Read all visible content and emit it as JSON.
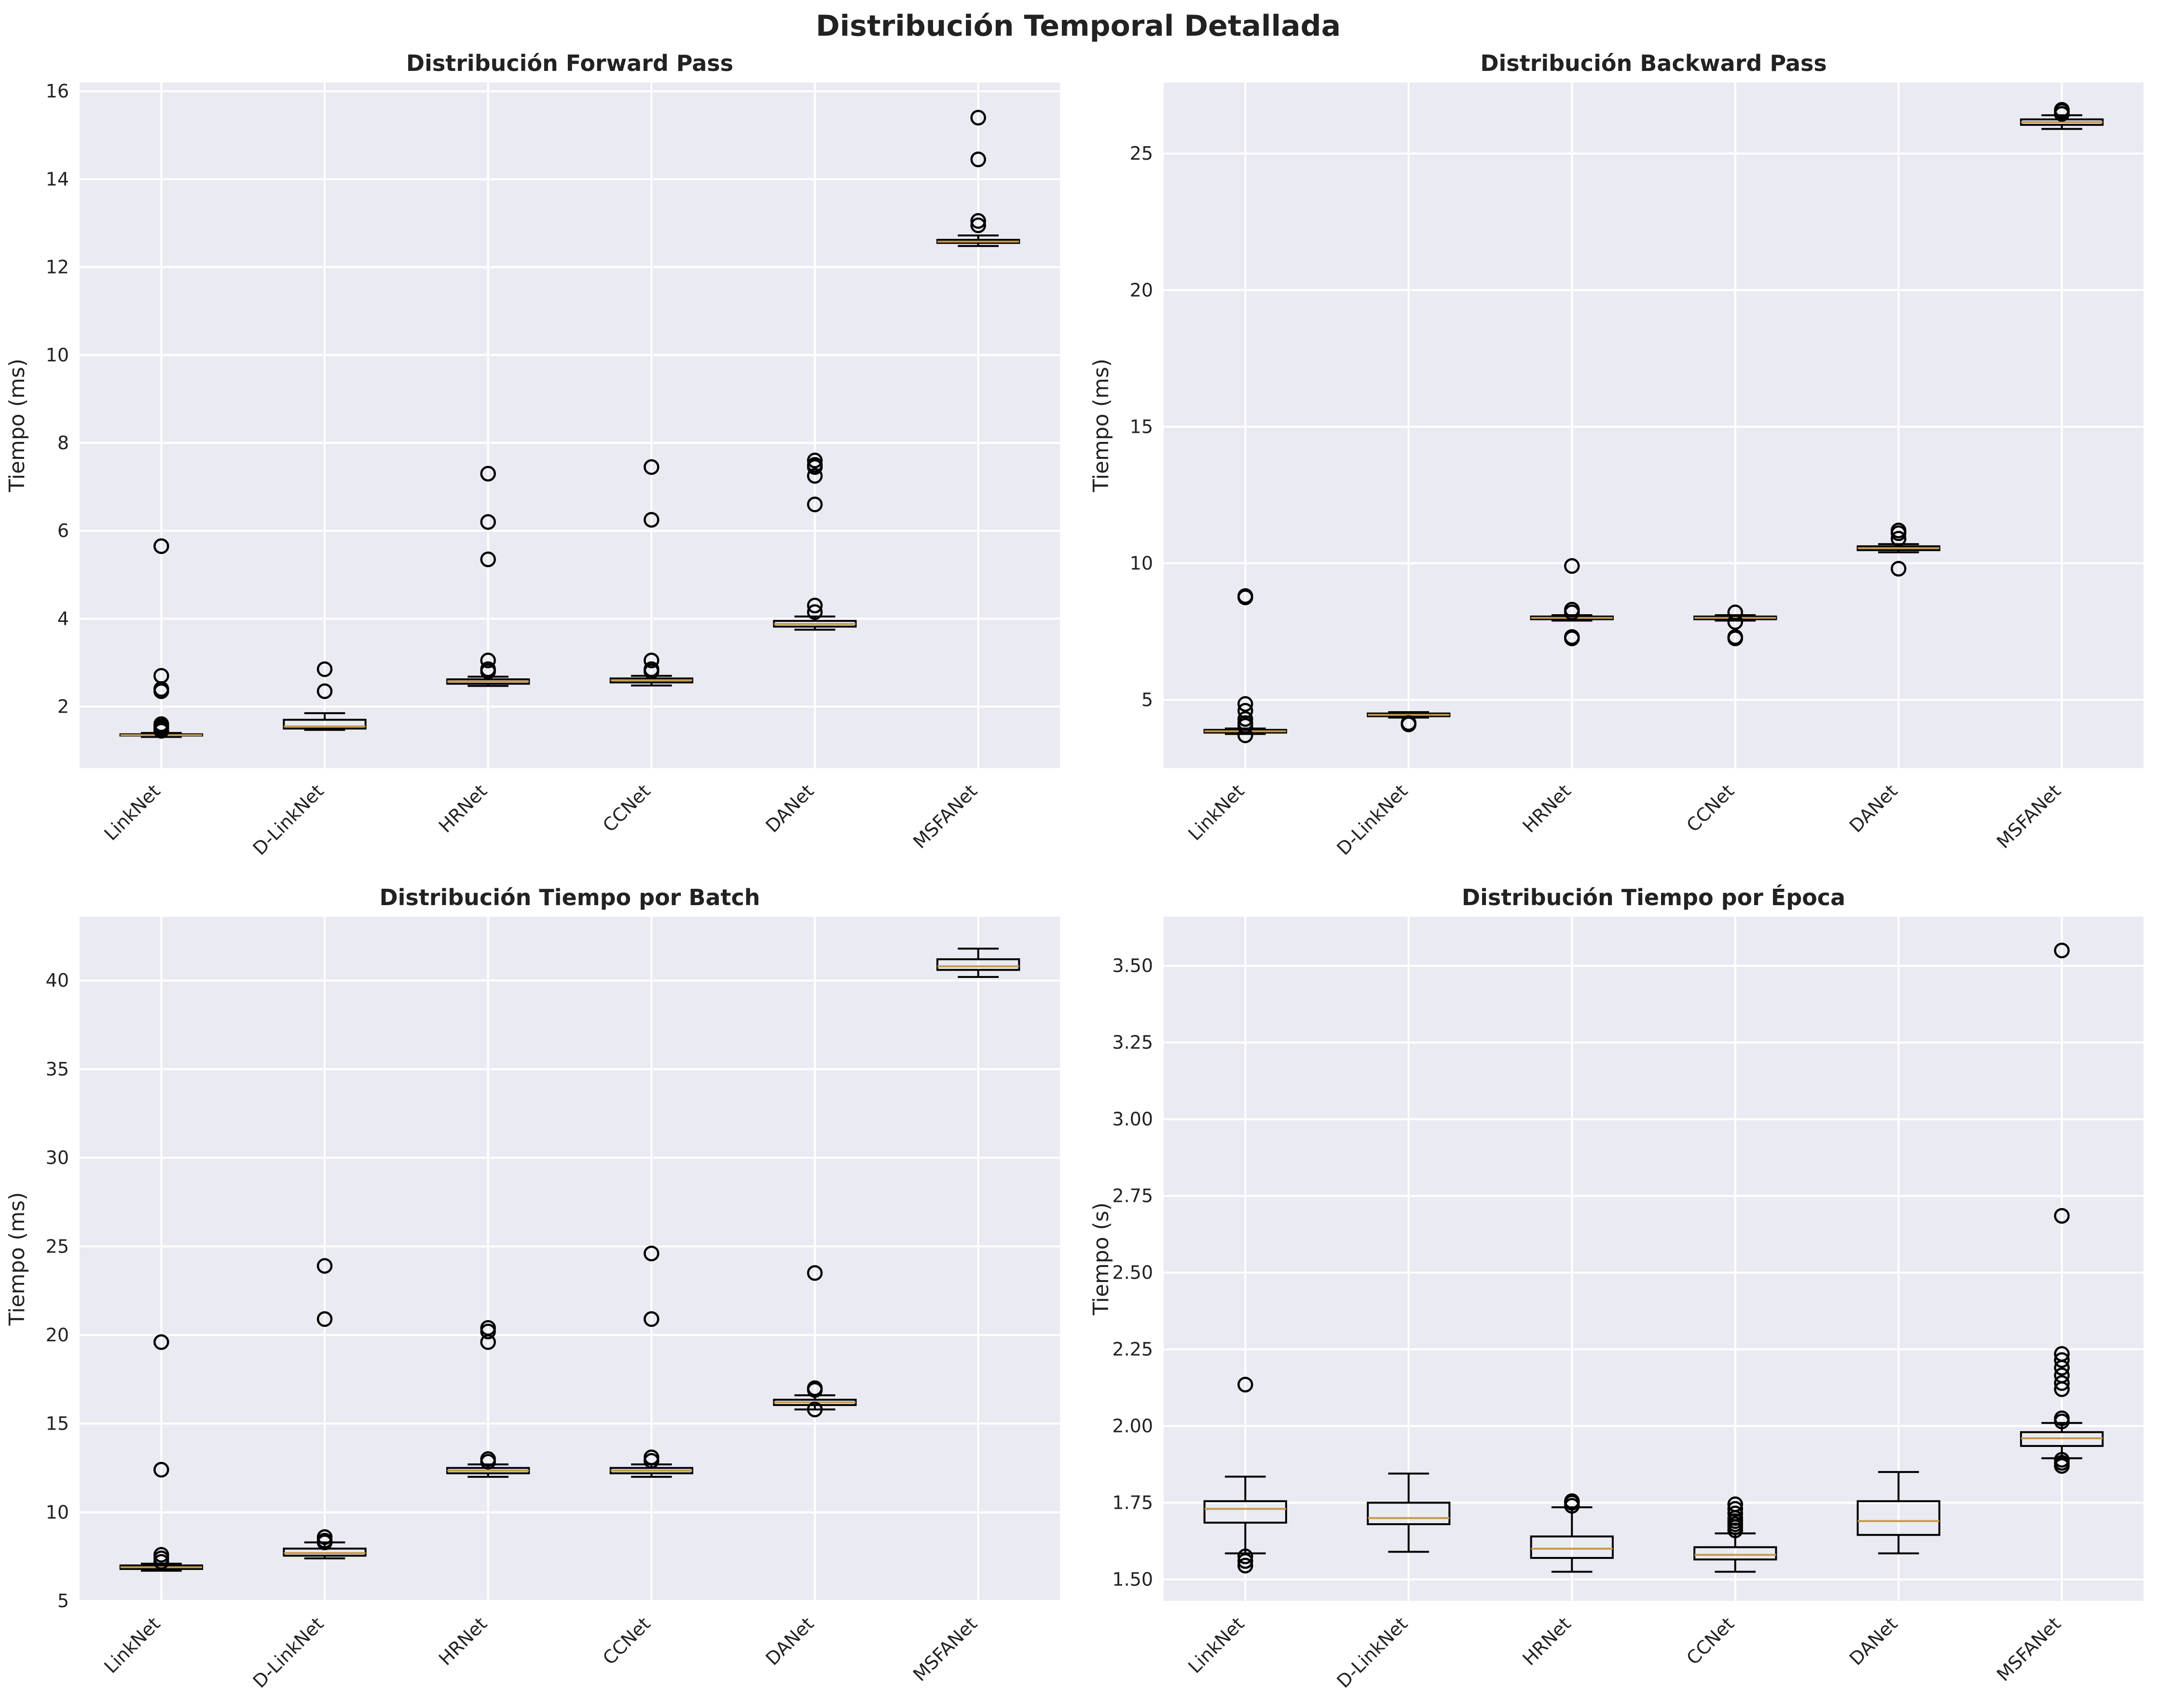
{
  "suptitle": "Distribución Temporal Detallada",
  "colors": {
    "background": "#eaeaf2",
    "grid": "#ffffff",
    "box": "#000000",
    "median": "#c49a4a"
  },
  "chart_data": [
    {
      "type": "box",
      "title": "Distribución Forward Pass",
      "xlabel": "",
      "ylabel": "Tiempo (ms)",
      "ylim": [
        0.6,
        16.2
      ],
      "yticks": [
        2,
        4,
        6,
        8,
        10,
        12,
        14,
        16
      ],
      "ytick_labels": [
        "2",
        "4",
        "6",
        "8",
        "10",
        "12",
        "14",
        "16"
      ],
      "categories": [
        "LinkNet",
        "D-LinkNet",
        "HRNet",
        "CCNet",
        "DANet",
        "MSFANet"
      ],
      "grid": true,
      "boxes": [
        {
          "whislo": 1.31,
          "q1": 1.34,
          "med": 1.35,
          "q3": 1.37,
          "whishi": 1.4,
          "fliers": [
            5.65,
            2.7,
            2.4,
            2.35,
            1.6,
            1.55,
            1.5,
            1.45
          ]
        },
        {
          "whislo": 1.47,
          "q1": 1.5,
          "med": 1.55,
          "q3": 1.7,
          "whishi": 1.85,
          "fliers": [
            2.85,
            2.35
          ]
        },
        {
          "whislo": 2.47,
          "q1": 2.52,
          "med": 2.57,
          "q3": 2.62,
          "whishi": 2.68,
          "fliers": [
            7.3,
            6.2,
            5.35,
            3.05,
            2.85,
            2.8
          ]
        },
        {
          "whislo": 2.48,
          "q1": 2.55,
          "med": 2.6,
          "q3": 2.64,
          "whishi": 2.7,
          "fliers": [
            7.45,
            6.25,
            3.05,
            2.85,
            2.8
          ]
        },
        {
          "whislo": 3.75,
          "q1": 3.82,
          "med": 3.88,
          "q3": 3.95,
          "whishi": 4.05,
          "fliers": [
            7.6,
            7.5,
            7.45,
            7.25,
            6.6,
            4.3,
            4.15
          ]
        },
        {
          "whislo": 12.48,
          "q1": 12.55,
          "med": 12.58,
          "q3": 12.62,
          "whishi": 12.72,
          "fliers": [
            15.4,
            14.45,
            13.05,
            12.95
          ]
        }
      ]
    },
    {
      "type": "box",
      "title": "Distribución Backward Pass",
      "xlabel": "",
      "ylabel": "Tiempo (ms)",
      "ylim": [
        2.5,
        27.6
      ],
      "yticks": [
        5,
        10,
        15,
        20,
        25
      ],
      "ytick_labels": [
        "5",
        "10",
        "15",
        "20",
        "25"
      ],
      "categories": [
        "LinkNet",
        "D-LinkNet",
        "HRNet",
        "CCNet",
        "DANet",
        "MSFANet"
      ],
      "grid": true,
      "boxes": [
        {
          "whislo": 3.75,
          "q1": 3.8,
          "med": 3.85,
          "q3": 3.9,
          "whishi": 3.95,
          "fliers": [
            8.8,
            8.75,
            4.85,
            4.6,
            4.3,
            4.15,
            4.05,
            3.7
          ]
        },
        {
          "whislo": 4.35,
          "q1": 4.4,
          "med": 4.45,
          "q3": 4.5,
          "whishi": 4.55,
          "fliers": [
            4.15,
            4.1
          ]
        },
        {
          "whislo": 7.9,
          "q1": 7.95,
          "med": 8.0,
          "q3": 8.05,
          "whishi": 8.1,
          "fliers": [
            9.9,
            8.3,
            8.2,
            7.3,
            7.25
          ]
        },
        {
          "whislo": 7.9,
          "q1": 7.95,
          "med": 8.0,
          "q3": 8.05,
          "whishi": 8.1,
          "fliers": [
            8.2,
            7.85,
            7.3,
            7.25
          ]
        },
        {
          "whislo": 10.4,
          "q1": 10.48,
          "med": 10.55,
          "q3": 10.62,
          "whishi": 10.7,
          "fliers": [
            11.2,
            11.1,
            10.9,
            9.8
          ]
        },
        {
          "whislo": 25.9,
          "q1": 26.05,
          "med": 26.15,
          "q3": 26.25,
          "whishi": 26.4,
          "fliers": [
            26.6,
            26.55,
            26.45
          ]
        }
      ]
    },
    {
      "type": "box",
      "title": "Distribución Tiempo por Batch",
      "xlabel": "",
      "ylabel": "Tiempo (ms)",
      "ylim": [
        5.0,
        43.6
      ],
      "yticks": [
        5,
        10,
        15,
        20,
        25,
        30,
        35,
        40
      ],
      "ytick_labels": [
        "5",
        "10",
        "15",
        "20",
        "25",
        "30",
        "35",
        "40"
      ],
      "categories": [
        "LinkNet",
        "D-LinkNet",
        "HRNet",
        "CCNet",
        "DANet",
        "MSFANet"
      ],
      "grid": true,
      "boxes": [
        {
          "whislo": 6.7,
          "q1": 6.8,
          "med": 6.9,
          "q3": 7.0,
          "whishi": 7.1,
          "fliers": [
            19.6,
            12.4,
            7.6,
            7.4,
            7.2
          ]
        },
        {
          "whislo": 7.4,
          "q1": 7.55,
          "med": 7.7,
          "q3": 7.95,
          "whishi": 8.3,
          "fliers": [
            23.9,
            20.9,
            8.6,
            8.4,
            8.3
          ]
        },
        {
          "whislo": 12.0,
          "q1": 12.2,
          "med": 12.35,
          "q3": 12.5,
          "whishi": 12.7,
          "fliers": [
            20.4,
            20.2,
            19.6,
            13.0,
            12.85
          ]
        },
        {
          "whislo": 12.0,
          "q1": 12.2,
          "med": 12.35,
          "q3": 12.5,
          "whishi": 12.7,
          "fliers": [
            24.6,
            20.9,
            13.1,
            12.9
          ]
        },
        {
          "whislo": 15.8,
          "q1": 16.05,
          "med": 16.2,
          "q3": 16.35,
          "whishi": 16.6,
          "fliers": [
            23.5,
            17.0,
            16.9,
            15.8
          ]
        },
        {
          "whislo": 40.2,
          "q1": 40.6,
          "med": 40.8,
          "q3": 41.2,
          "whishi": 41.8,
          "fliers": []
        }
      ]
    },
    {
      "type": "box",
      "title": "Distribución Tiempo por Época",
      "xlabel": "",
      "ylabel": "Tiempo (s)",
      "ylim": [
        1.43,
        3.66
      ],
      "yticks": [
        1.5,
        1.75,
        2.0,
        2.25,
        2.5,
        2.75,
        3.0,
        3.25,
        3.5
      ],
      "ytick_labels": [
        "1.50",
        "1.75",
        "2.00",
        "2.25",
        "2.50",
        "2.75",
        "3.00",
        "3.25",
        "3.50"
      ],
      "categories": [
        "LinkNet",
        "D-LinkNet",
        "HRNet",
        "CCNet",
        "DANet",
        "MSFANet"
      ],
      "grid": true,
      "boxes": [
        {
          "whislo": 1.585,
          "q1": 1.685,
          "med": 1.73,
          "q3": 1.755,
          "whishi": 1.835,
          "fliers": [
            2.135,
            1.575,
            1.56,
            1.545
          ]
        },
        {
          "whislo": 1.59,
          "q1": 1.68,
          "med": 1.7,
          "q3": 1.75,
          "whishi": 1.845,
          "fliers": []
        },
        {
          "whislo": 1.525,
          "q1": 1.57,
          "med": 1.6,
          "q3": 1.64,
          "whishi": 1.735,
          "fliers": [
            1.755,
            1.75,
            1.74
          ]
        },
        {
          "whislo": 1.525,
          "q1": 1.565,
          "med": 1.58,
          "q3": 1.605,
          "whishi": 1.65,
          "fliers": [
            1.745,
            1.73,
            1.715,
            1.7,
            1.69,
            1.68,
            1.67,
            1.66
          ]
        },
        {
          "whislo": 1.585,
          "q1": 1.645,
          "med": 1.69,
          "q3": 1.755,
          "whishi": 1.85,
          "fliers": []
        },
        {
          "whislo": 1.895,
          "q1": 1.935,
          "med": 1.96,
          "q3": 1.98,
          "whishi": 2.01,
          "fliers": [
            3.55,
            2.685,
            2.235,
            2.215,
            2.19,
            2.165,
            2.14,
            2.12,
            2.025,
            2.015,
            1.89,
            1.88,
            1.87
          ]
        }
      ]
    }
  ]
}
